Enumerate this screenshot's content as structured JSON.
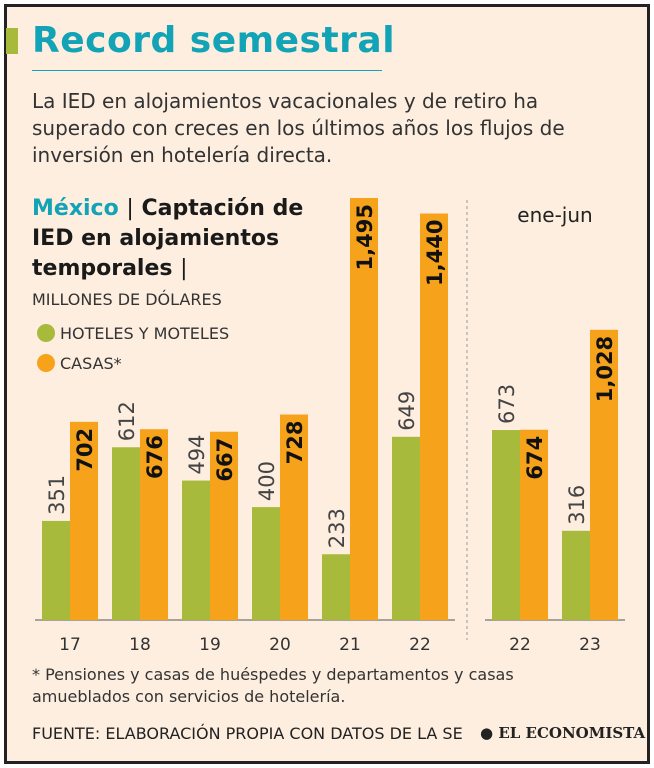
{
  "chart_data": [
    {
      "type": "bar",
      "title": "Record semestral",
      "subtitle": "La IED en alojamientos vacacionales y de retiro ha superado con creces en los últimos años los flujos de inversión en hotelería directa.",
      "region": "México",
      "chart_title": "Captación de IED en alojamientos temporales",
      "unit": "MILLONES DE DÓLARES",
      "categories": [
        "17",
        "18",
        "19",
        "20",
        "21",
        "22"
      ],
      "series": [
        {
          "name": "HOTELES Y MOTELES",
          "color": "#a8ba3c",
          "values": [
            351,
            612,
            494,
            400,
            233,
            649
          ]
        },
        {
          "name": "CASAS*",
          "color": "#f7a21b",
          "values": [
            702,
            676,
            667,
            728,
            1495,
            1440
          ],
          "value_labels": [
            "702",
            "676",
            "667",
            "728",
            "1,495",
            "1,440"
          ]
        }
      ],
      "note": "* Pensiones y casas de huéspedes y departamentos y casas amueblados con servicios de hotelería.",
      "source": "FUENTE: ELABORACIÓN PROPIA CON DATOS DE LA SE",
      "brand": "EL ECONOMISTA"
    },
    {
      "type": "bar",
      "title": "ene-jun",
      "categories": [
        "22",
        "23"
      ],
      "series": [
        {
          "name": "HOTELES Y MOTELES",
          "color": "#a8ba3c",
          "values": [
            673,
            316
          ]
        },
        {
          "name": "CASAS*",
          "color": "#f7a21b",
          "values": [
            674,
            1028
          ],
          "value_labels": [
            "674",
            "1,028"
          ]
        }
      ]
    }
  ]
}
